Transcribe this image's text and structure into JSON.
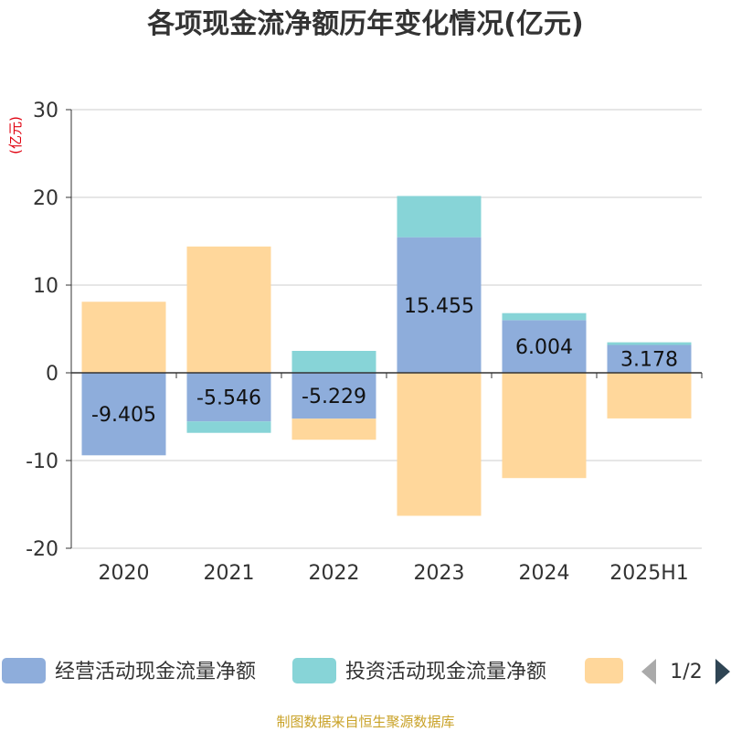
{
  "title": "各项现金流净额历年变化情况(亿元)",
  "unit_label": "(亿元)",
  "source": "制图数据来自恒生聚源数据库",
  "legend": {
    "items": [
      {
        "label": "经营活动现金流量净额",
        "color": "#8eaddb"
      },
      {
        "label": "投资活动现金流量净额",
        "color": "#87d4d7"
      },
      {
        "label": "",
        "color": "#ffd79b"
      }
    ],
    "page_text": "1/2"
  },
  "colors": {
    "operating": "#8eaddb",
    "investing": "#87d4d7",
    "financing": "#ffd79b",
    "grid": "#cccccc",
    "axis": "#333333",
    "pager_prev": "#aaaaaa",
    "pager_next": "#2f4554"
  },
  "chart_data": {
    "type": "bar",
    "stacked": true,
    "categories": [
      "2020",
      "2021",
      "2022",
      "2023",
      "2024",
      "2025H1"
    ],
    "ylim": [
      -20,
      30
    ],
    "yticks": [
      30,
      20,
      10,
      0,
      -10,
      -20
    ],
    "grid": true,
    "legend_position": "bottom",
    "series": [
      {
        "name": "经营活动现金流量净额",
        "values": [
          -9.405,
          -5.546,
          -5.229,
          15.455,
          6.004,
          3.178
        ],
        "data_labels": [
          "-9.405",
          "-5.546",
          "-5.229",
          "15.455",
          "6.004",
          "3.178"
        ]
      },
      {
        "name": "投资活动现金流量净额",
        "values": [
          0,
          -1.3,
          2.5,
          4.7,
          0.8,
          0.3
        ]
      },
      {
        "name": "",
        "values": [
          8.1,
          14.4,
          -2.4,
          -16.3,
          -12.0,
          -5.2
        ]
      }
    ]
  }
}
